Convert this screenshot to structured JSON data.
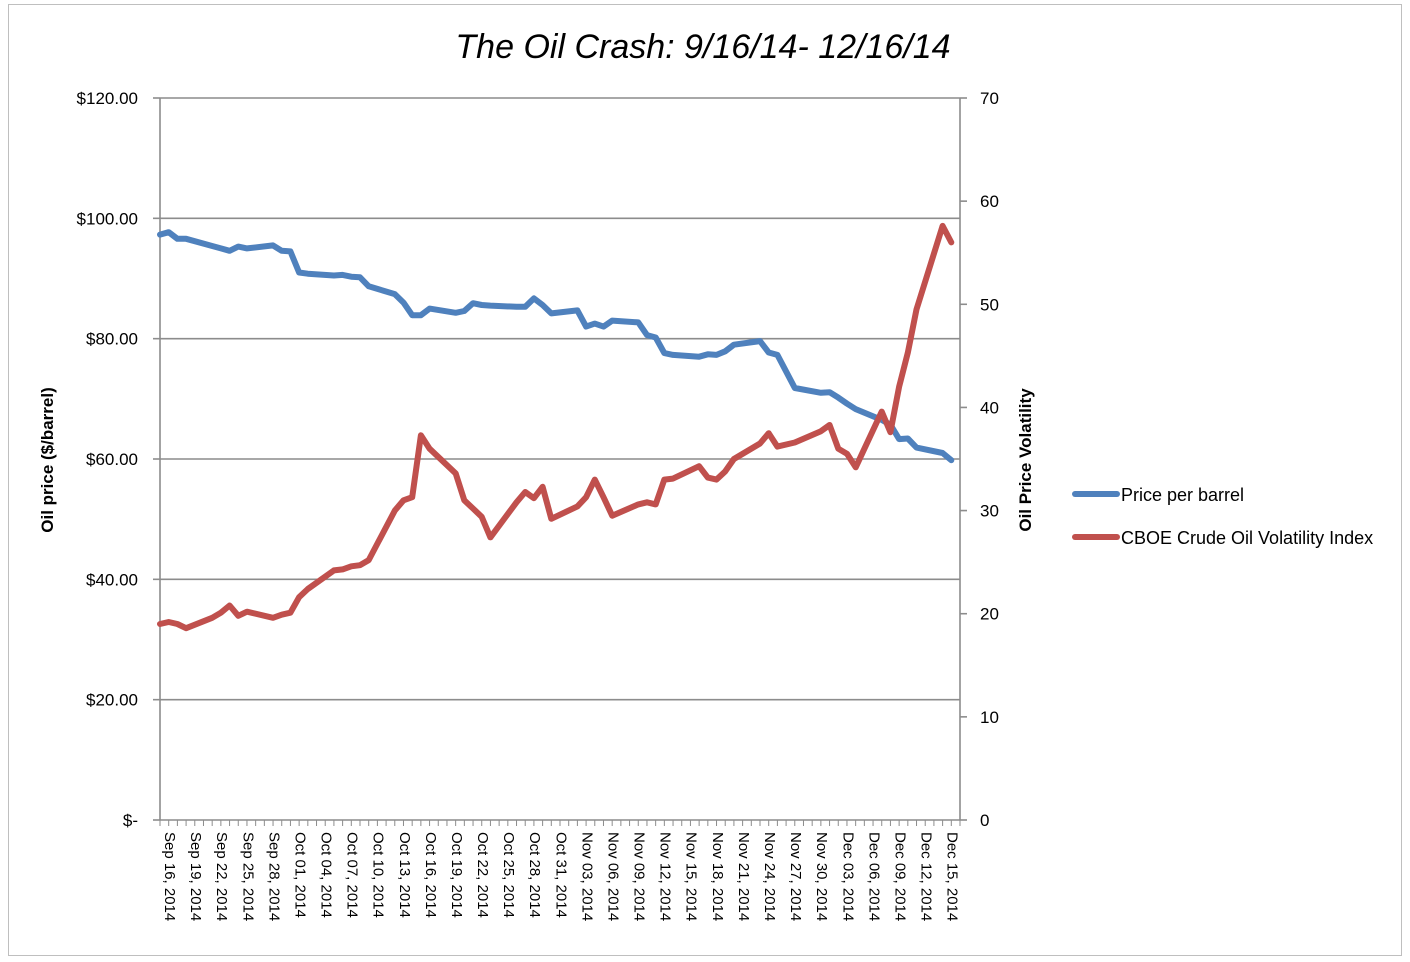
{
  "chart_data": {
    "type": "line",
    "title": "The Oil Crash: 9/16/14- 12/16/14",
    "ylabel": "Oil price  ($/barrel)",
    "y2label": "Oil Price Volatility",
    "ylim": [
      0,
      120
    ],
    "y2lim": [
      0,
      70
    ],
    "yticks": [
      "$-",
      "$20.00",
      "$40.00",
      "$60.00",
      "$80.00",
      "$100.00",
      "$120.00"
    ],
    "y2ticks": [
      "0",
      "10",
      "20",
      "30",
      "40",
      "50",
      "60",
      "70"
    ],
    "grid": "horizontal",
    "legend_position": "right",
    "xticks": [
      "Sep 16, 2014",
      "Sep 19, 2014",
      "Sep 22, 2014",
      "Sep 25, 2014",
      "Sep 28, 2014",
      "Oct 01, 2014",
      "Oct 04, 2014",
      "Oct 07, 2014",
      "Oct 10, 2014",
      "Oct 13, 2014",
      "Oct 16, 2014",
      "Oct 19, 2014",
      "Oct 22, 2014",
      "Oct 25, 2014",
      "Oct 28, 2014",
      "Oct 31, 2014",
      "Nov 03, 2014",
      "Nov 06, 2014",
      "Nov 09, 2014",
      "Nov 12, 2014",
      "Nov 15, 2014",
      "Nov 18, 2014",
      "Nov 21, 2014",
      "Nov 24, 2014",
      "Nov 27, 2014",
      "Nov 30, 2014",
      "Dec 03, 2014",
      "Dec 06, 2014",
      "Dec 09, 2014",
      "Dec 12, 2014",
      "Dec 15, 2014"
    ],
    "series": [
      {
        "name": "Price per barrel",
        "axis": "left",
        "color": "#4f81bd",
        "points": [
          [
            "2014-09-16",
            97.3
          ],
          [
            "2014-09-17",
            97.7
          ],
          [
            "2014-09-18",
            96.6
          ],
          [
            "2014-09-19",
            96.6
          ],
          [
            "2014-09-22",
            95.4
          ],
          [
            "2014-09-23",
            95.0
          ],
          [
            "2014-09-24",
            94.6
          ],
          [
            "2014-09-25",
            95.3
          ],
          [
            "2014-09-26",
            95.0
          ],
          [
            "2014-09-29",
            95.5
          ],
          [
            "2014-09-30",
            94.6
          ],
          [
            "2014-10-01",
            94.5
          ],
          [
            "2014-10-02",
            91.0
          ],
          [
            "2014-10-03",
            90.8
          ],
          [
            "2014-10-06",
            90.5
          ],
          [
            "2014-10-07",
            90.6
          ],
          [
            "2014-10-08",
            90.3
          ],
          [
            "2014-10-09",
            90.2
          ],
          [
            "2014-10-10",
            88.7
          ],
          [
            "2014-10-13",
            87.4
          ],
          [
            "2014-10-14",
            86.0
          ],
          [
            "2014-10-15",
            83.9
          ],
          [
            "2014-10-16",
            83.9
          ],
          [
            "2014-10-17",
            85.0
          ],
          [
            "2014-10-20",
            84.3
          ],
          [
            "2014-10-21",
            84.6
          ],
          [
            "2014-10-22",
            85.9
          ],
          [
            "2014-10-23",
            85.6
          ],
          [
            "2014-10-24",
            85.5
          ],
          [
            "2014-10-27",
            85.3
          ],
          [
            "2014-10-28",
            85.3
          ],
          [
            "2014-10-29",
            86.7
          ],
          [
            "2014-10-30",
            85.6
          ],
          [
            "2014-10-31",
            84.2
          ],
          [
            "2014-11-03",
            84.7
          ],
          [
            "2014-11-04",
            82.0
          ],
          [
            "2014-11-05",
            82.5
          ],
          [
            "2014-11-06",
            82.0
          ],
          [
            "2014-11-07",
            83.0
          ],
          [
            "2014-11-10",
            82.7
          ],
          [
            "2014-11-11",
            80.6
          ],
          [
            "2014-11-12",
            80.2
          ],
          [
            "2014-11-13",
            77.6
          ],
          [
            "2014-11-14",
            77.3
          ],
          [
            "2014-11-17",
            77.0
          ],
          [
            "2014-11-18",
            77.4
          ],
          [
            "2014-11-19",
            77.3
          ],
          [
            "2014-11-20",
            77.9
          ],
          [
            "2014-11-21",
            79.0
          ],
          [
            "2014-11-24",
            79.6
          ],
          [
            "2014-11-25",
            77.7
          ],
          [
            "2014-11-26",
            77.3
          ],
          [
            "2014-11-28",
            71.8
          ],
          [
            "2014-12-01",
            71.0
          ],
          [
            "2014-12-02",
            71.1
          ],
          [
            "2014-12-03",
            70.2
          ],
          [
            "2014-12-04",
            69.2
          ],
          [
            "2014-12-05",
            68.3
          ],
          [
            "2014-12-08",
            66.5
          ],
          [
            "2014-12-09",
            65.7
          ],
          [
            "2014-12-10",
            63.3
          ],
          [
            "2014-12-11",
            63.4
          ],
          [
            "2014-12-12",
            61.9
          ],
          [
            "2014-12-15",
            61.0
          ],
          [
            "2014-12-16",
            59.8
          ]
        ]
      },
      {
        "name": "CBOE Crude Oil Volatility Index",
        "axis": "right",
        "color": "#c0504d",
        "points": [
          [
            "2014-09-16",
            19.0
          ],
          [
            "2014-09-17",
            19.2
          ],
          [
            "2014-09-18",
            19.0
          ],
          [
            "2014-09-19",
            18.6
          ],
          [
            "2014-09-22",
            19.6
          ],
          [
            "2014-09-23",
            20.1
          ],
          [
            "2014-09-24",
            20.8
          ],
          [
            "2014-09-25",
            19.8
          ],
          [
            "2014-09-26",
            20.2
          ],
          [
            "2014-09-29",
            19.6
          ],
          [
            "2014-09-30",
            19.9
          ],
          [
            "2014-10-01",
            20.1
          ],
          [
            "2014-10-02",
            21.6
          ],
          [
            "2014-10-03",
            22.4
          ],
          [
            "2014-10-06",
            24.2
          ],
          [
            "2014-10-07",
            24.3
          ],
          [
            "2014-10-08",
            24.6
          ],
          [
            "2014-10-09",
            24.7
          ],
          [
            "2014-10-10",
            25.2
          ],
          [
            "2014-10-13",
            30.0
          ],
          [
            "2014-10-14",
            31.0
          ],
          [
            "2014-10-15",
            31.3
          ],
          [
            "2014-10-16",
            37.3
          ],
          [
            "2014-10-17",
            36.0
          ],
          [
            "2014-10-20",
            33.6
          ],
          [
            "2014-10-21",
            31.0
          ],
          [
            "2014-10-22",
            30.2
          ],
          [
            "2014-10-23",
            29.4
          ],
          [
            "2014-10-24",
            27.4
          ],
          [
            "2014-10-27",
            30.8
          ],
          [
            "2014-10-28",
            31.8
          ],
          [
            "2014-10-29",
            31.2
          ],
          [
            "2014-10-30",
            32.3
          ],
          [
            "2014-10-31",
            29.2
          ],
          [
            "2014-11-03",
            30.4
          ],
          [
            "2014-11-04",
            31.3
          ],
          [
            "2014-11-05",
            33.0
          ],
          [
            "2014-11-06",
            31.3
          ],
          [
            "2014-11-07",
            29.5
          ],
          [
            "2014-11-10",
            30.6
          ],
          [
            "2014-11-11",
            30.8
          ],
          [
            "2014-11-12",
            30.6
          ],
          [
            "2014-11-13",
            33.0
          ],
          [
            "2014-11-14",
            33.1
          ],
          [
            "2014-11-17",
            34.3
          ],
          [
            "2014-11-18",
            33.2
          ],
          [
            "2014-11-19",
            33.0
          ],
          [
            "2014-11-20",
            33.8
          ],
          [
            "2014-11-21",
            35.0
          ],
          [
            "2014-11-24",
            36.5
          ],
          [
            "2014-11-25",
            37.5
          ],
          [
            "2014-11-26",
            36.2
          ],
          [
            "2014-11-28",
            36.6
          ],
          [
            "2014-12-01",
            37.7
          ],
          [
            "2014-12-02",
            38.3
          ],
          [
            "2014-12-03",
            36.0
          ],
          [
            "2014-12-04",
            35.5
          ],
          [
            "2014-12-05",
            34.2
          ],
          [
            "2014-12-08",
            39.6
          ],
          [
            "2014-12-09",
            37.6
          ],
          [
            "2014-12-10",
            42.0
          ],
          [
            "2014-12-11",
            45.3
          ],
          [
            "2014-12-12",
            49.5
          ],
          [
            "2014-12-15",
            57.6
          ],
          [
            "2014-12-16",
            56.0
          ]
        ]
      }
    ]
  }
}
